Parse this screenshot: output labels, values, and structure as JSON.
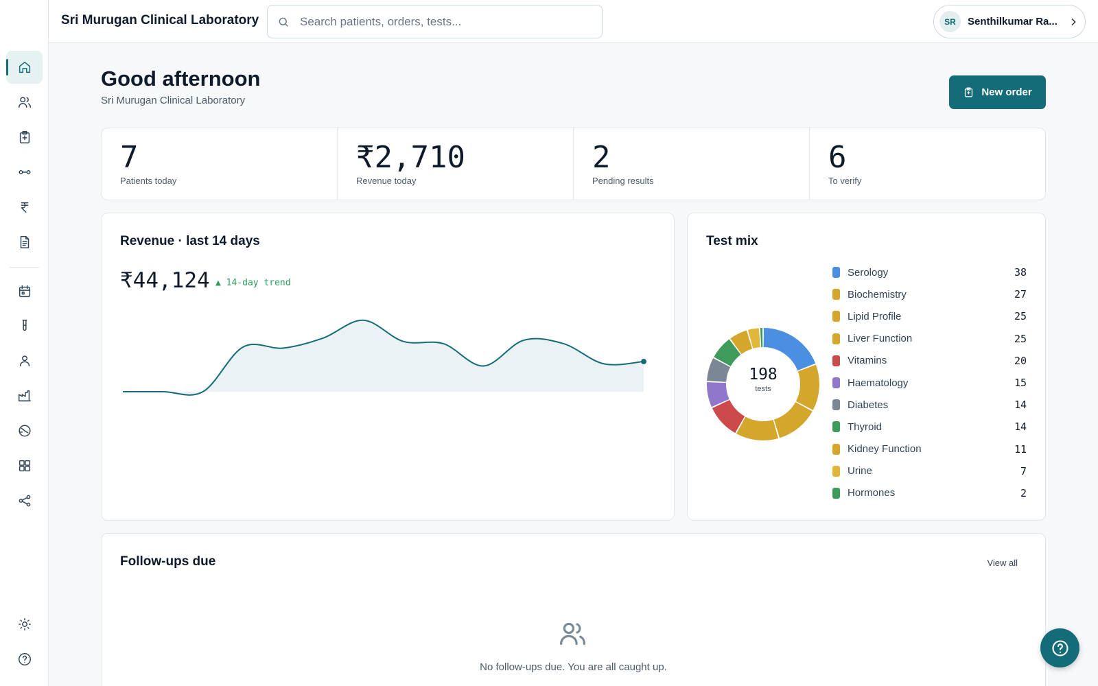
{
  "app": {
    "title": "Sri Murugan Clinical Laboratory"
  },
  "search": {
    "placeholder": "Search patients, orders, tests..."
  },
  "user": {
    "initials": "SR",
    "name": "Senthilkumar Ra..."
  },
  "sidebar": {
    "top_items": [
      {
        "icon": "home-icon",
        "active": true
      },
      {
        "icon": "patients-icon"
      },
      {
        "icon": "orders-clipboard-icon"
      },
      {
        "icon": "samples-link-icon"
      },
      {
        "icon": "rupee-icon"
      },
      {
        "icon": "reports-document-icon"
      }
    ],
    "lower_items": [
      {
        "icon": "calendar-icon"
      },
      {
        "icon": "test-tube-icon"
      },
      {
        "icon": "user-icon"
      },
      {
        "icon": "factory-icon"
      },
      {
        "icon": "dashboard-gauge-icon"
      },
      {
        "icon": "apps-grid-icon"
      },
      {
        "icon": "share-icon"
      }
    ],
    "bottom_items": [
      {
        "icon": "theme-sun-icon"
      },
      {
        "icon": "help-circle-icon"
      }
    ]
  },
  "page": {
    "greeting": "Good afternoon",
    "subtitle": "Sri Murugan Clinical Laboratory",
    "new_order_label": "New order"
  },
  "stats": [
    {
      "value": "7",
      "label": "Patients today"
    },
    {
      "value": "₹2,710",
      "label": "Revenue today"
    },
    {
      "value": "2",
      "label": "Pending results"
    },
    {
      "value": "6",
      "label": "To verify"
    }
  ],
  "revenue": {
    "title": "Revenue · last 14 days",
    "total": "₹44,124",
    "trend_label": "▲ 14-day trend"
  },
  "test_mix": {
    "title": "Test mix",
    "total": "198",
    "total_label": "tests",
    "items": [
      {
        "label": "Serology",
        "value": 38,
        "color": "#4a8fe0"
      },
      {
        "label": "Biochemistry",
        "value": 27,
        "color": "#d4a72c"
      },
      {
        "label": "Lipid Profile",
        "value": 25,
        "color": "#d4a72c"
      },
      {
        "label": "Liver Function",
        "value": 25,
        "color": "#d4a72c"
      },
      {
        "label": "Vitamins",
        "value": 20,
        "color": "#cc4a4a"
      },
      {
        "label": "Haematology",
        "value": 15,
        "color": "#9177cc"
      },
      {
        "label": "Diabetes",
        "value": 14,
        "color": "#7b8794"
      },
      {
        "label": "Thyroid",
        "value": 14,
        "color": "#3e9b5c"
      },
      {
        "label": "Kidney Function",
        "value": 11,
        "color": "#d4a72c"
      },
      {
        "label": "Urine",
        "value": 7,
        "color": "#e0b73a"
      },
      {
        "label": "Hormones",
        "value": 2,
        "color": "#3e9b5c"
      }
    ]
  },
  "followups": {
    "title": "Follow-ups due",
    "view_all_label": "View all",
    "empty_text": "No follow-ups due. You are all caught up."
  },
  "colors": {
    "accent": "#146c78",
    "trend_up": "#2c9a5a",
    "chart_fill": "#eaf2f3"
  },
  "chart_data": [
    {
      "type": "area",
      "title": "Revenue · last 14 days",
      "x": [
        1,
        2,
        3,
        4,
        5,
        6,
        7,
        8,
        9,
        10,
        11,
        12,
        13,
        14
      ],
      "series": [
        {
          "values": [
            0,
            0,
            0,
            4000,
            3900,
            4800,
            6400,
            4500,
            4300,
            2300,
            4600,
            4300,
            2500,
            2700
          ]
        }
      ],
      "ylim": [
        0,
        7000
      ],
      "grid": false
    },
    {
      "type": "pie",
      "title": "Test mix",
      "categories": [
        "Serology",
        "Biochemistry",
        "Lipid Profile",
        "Liver Function",
        "Vitamins",
        "Haematology",
        "Diabetes",
        "Thyroid",
        "Kidney Function",
        "Urine",
        "Hormones"
      ],
      "values": [
        38,
        27,
        25,
        25,
        20,
        15,
        14,
        14,
        11,
        7,
        2
      ]
    }
  ]
}
